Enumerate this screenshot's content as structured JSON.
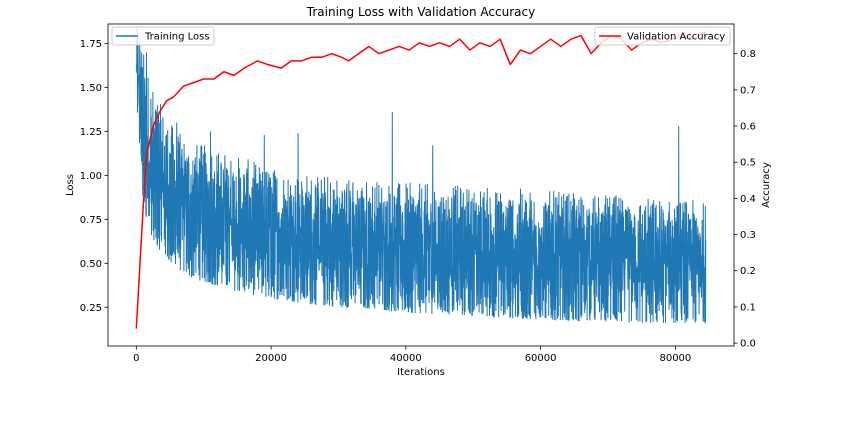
{
  "chart_data": {
    "type": "line",
    "title": "Training Loss with Validation Accuracy",
    "xlabel": "Iterations",
    "ylabel_left": "Loss",
    "ylabel_right": "Accuracy",
    "xlim": [
      -4200,
      88700
    ],
    "ylim_left": [
      0.03,
      1.86
    ],
    "ylim_right": [
      -0.008,
      0.882
    ],
    "x_ticks": [
      0,
      20000,
      40000,
      60000,
      80000
    ],
    "x_tick_labels": [
      "0",
      "20000",
      "40000",
      "60000",
      "80000"
    ],
    "y_left_ticks": [
      0.25,
      0.5,
      0.75,
      1.0,
      1.25,
      1.5,
      1.75
    ],
    "y_left_tick_labels": [
      "0.25",
      "0.50",
      "0.75",
      "1.00",
      "1.25",
      "1.50",
      "1.75"
    ],
    "y_right_ticks": [
      0.0,
      0.1,
      0.2,
      0.3,
      0.4,
      0.5,
      0.6,
      0.7,
      0.8
    ],
    "y_right_tick_labels": [
      "0.0",
      "0.1",
      "0.2",
      "0.3",
      "0.4",
      "0.5",
      "0.6",
      "0.7",
      "0.8"
    ],
    "grid": false,
    "series": [
      {
        "name": "Training Loss",
        "axis": "left",
        "color": "#1f77b4",
        "style": "dense noisy line",
        "x_range": [
          0,
          84500
        ],
        "envelope": {
          "x": [
            0,
            1000,
            2000,
            3000,
            5000,
            8000,
            12000,
            16000,
            20000,
            25000,
            30000,
            35000,
            40000,
            45000,
            50000,
            55000,
            60000,
            65000,
            70000,
            75000,
            80000,
            84500
          ],
          "min": [
            1.45,
            0.82,
            0.68,
            0.6,
            0.5,
            0.42,
            0.37,
            0.33,
            0.3,
            0.27,
            0.25,
            0.24,
            0.22,
            0.21,
            0.2,
            0.19,
            0.18,
            0.17,
            0.17,
            0.16,
            0.16,
            0.16
          ],
          "max": [
            1.85,
            1.72,
            1.55,
            1.45,
            1.3,
            1.2,
            1.15,
            1.1,
            1.05,
            1.02,
            1.0,
            0.98,
            0.96,
            0.95,
            0.94,
            0.93,
            0.92,
            0.9,
            0.89,
            0.88,
            0.87,
            0.85
          ]
        },
        "spikes": [
          {
            "x": 500,
            "y": 1.76
          },
          {
            "x": 1500,
            "y": 1.7
          },
          {
            "x": 6000,
            "y": 1.3
          },
          {
            "x": 11000,
            "y": 1.25
          },
          {
            "x": 19000,
            "y": 1.23
          },
          {
            "x": 24000,
            "y": 1.24
          },
          {
            "x": 38000,
            "y": 1.36
          },
          {
            "x": 44000,
            "y": 1.17
          },
          {
            "x": 80500,
            "y": 1.28
          }
        ]
      },
      {
        "name": "Validation Accuracy",
        "axis": "right",
        "color": "#ff0000",
        "x": [
          0,
          1000,
          1500,
          2500,
          3500,
          4500,
          5500,
          7000,
          8500,
          10000,
          11500,
          13000,
          14500,
          16000,
          18000,
          19500,
          21500,
          23000,
          24500,
          26000,
          27500,
          29000,
          30500,
          31500,
          33000,
          34500,
          36000,
          37500,
          39000,
          40500,
          42000,
          43500,
          45000,
          46500,
          48000,
          49500,
          51000,
          52500,
          54000,
          55500,
          57000,
          58500,
          60000,
          61500,
          63000,
          64500,
          66000,
          67500,
          69000,
          70500,
          72000,
          73500,
          75000,
          76500,
          78000,
          79500,
          81000,
          82500,
          84500
        ],
        "y": [
          0.04,
          0.37,
          0.52,
          0.6,
          0.64,
          0.67,
          0.68,
          0.71,
          0.72,
          0.73,
          0.73,
          0.75,
          0.74,
          0.76,
          0.78,
          0.77,
          0.76,
          0.78,
          0.78,
          0.79,
          0.79,
          0.8,
          0.79,
          0.78,
          0.8,
          0.82,
          0.8,
          0.81,
          0.82,
          0.81,
          0.83,
          0.82,
          0.83,
          0.82,
          0.84,
          0.81,
          0.83,
          0.82,
          0.84,
          0.77,
          0.81,
          0.8,
          0.82,
          0.84,
          0.82,
          0.84,
          0.85,
          0.8,
          0.83,
          0.85,
          0.84,
          0.81,
          0.83,
          0.84,
          0.83,
          0.84,
          0.85,
          0.84,
          0.86
        ]
      }
    ],
    "legends": [
      {
        "placement": "upper left",
        "entries": [
          "Training Loss"
        ]
      },
      {
        "placement": "upper right",
        "entries": [
          "Validation Accuracy"
        ]
      }
    ]
  }
}
